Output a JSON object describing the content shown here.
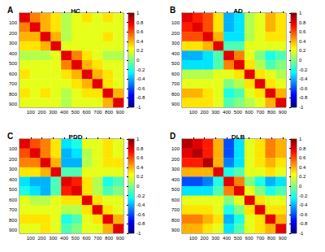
{
  "chart_data": [
    {
      "type": "heatmap",
      "panel": "A",
      "title": "HC",
      "x_edges": [
        0,
        93,
        186,
        279,
        372,
        465,
        558,
        651,
        744,
        837,
        930
      ],
      "y_edges": [
        0,
        93,
        186,
        279,
        372,
        465,
        558,
        651,
        744,
        837,
        930
      ],
      "cells": [
        [
          0.8,
          0.5,
          0.4,
          0.3,
          0.1,
          0.2,
          0.3,
          0.2,
          0.3,
          0.2
        ],
        [
          0.5,
          0.8,
          0.4,
          0.3,
          0.1,
          0.2,
          0.2,
          0.2,
          0.2,
          0.2
        ],
        [
          0.4,
          0.4,
          0.8,
          0.4,
          0.1,
          0.2,
          0.2,
          0.2,
          0.3,
          0.2
        ],
        [
          0.3,
          0.3,
          0.4,
          0.8,
          0.2,
          0.2,
          0.2,
          0.2,
          0.2,
          0.2
        ],
        [
          0.1,
          0.1,
          0.1,
          0.2,
          0.8,
          0.5,
          0.3,
          0.2,
          0.1,
          0.1
        ],
        [
          0.2,
          0.2,
          0.2,
          0.2,
          0.5,
          0.8,
          0.4,
          0.3,
          0.2,
          0.2
        ],
        [
          0.3,
          0.2,
          0.2,
          0.2,
          0.3,
          0.4,
          0.8,
          0.4,
          0.3,
          0.2
        ],
        [
          0.2,
          0.2,
          0.2,
          0.2,
          0.2,
          0.3,
          0.4,
          0.8,
          0.3,
          0.2
        ],
        [
          0.3,
          0.2,
          0.3,
          0.2,
          0.1,
          0.2,
          0.3,
          0.3,
          0.8,
          0.4
        ],
        [
          0.2,
          0.2,
          0.2,
          0.2,
          0.1,
          0.2,
          0.2,
          0.2,
          0.4,
          0.8
        ]
      ],
      "xlim": [
        0,
        930
      ],
      "ylim": [
        0,
        930
      ],
      "xticks": [
        100,
        200,
        300,
        400,
        500,
        600,
        700,
        800,
        900
      ],
      "yticks": [
        100,
        200,
        300,
        400,
        500,
        600,
        700,
        800,
        900
      ],
      "colorbar_range": [
        -1,
        1
      ],
      "colorbar_ticks": [
        -1,
        -0.8,
        -0.6,
        -0.4,
        -0.2,
        0,
        0.2,
        0.4,
        0.6,
        0.8,
        1
      ]
    },
    {
      "type": "heatmap",
      "panel": "B",
      "title": "AD",
      "x_edges": [
        0,
        93,
        186,
        279,
        372,
        465,
        558,
        651,
        744,
        837,
        930
      ],
      "y_edges": [
        0,
        93,
        186,
        279,
        372,
        465,
        558,
        651,
        744,
        837,
        930
      ],
      "cells": [
        [
          0.8,
          0.7,
          0.6,
          0.3,
          -0.4,
          -0.3,
          0.1,
          0.2,
          0.4,
          0.3
        ],
        [
          0.7,
          0.8,
          0.6,
          0.3,
          -0.4,
          -0.3,
          0.1,
          0.2,
          0.4,
          0.3
        ],
        [
          0.6,
          0.6,
          0.8,
          0.4,
          -0.3,
          -0.3,
          0.1,
          0.2,
          0.3,
          0.3
        ],
        [
          0.3,
          0.3,
          0.4,
          0.8,
          -0.1,
          -0.1,
          0.2,
          0.2,
          0.2,
          0.2
        ],
        [
          -0.4,
          -0.4,
          -0.3,
          -0.1,
          0.8,
          0.5,
          0.2,
          0,
          -0.2,
          -0.1
        ],
        [
          -0.3,
          -0.3,
          -0.3,
          -0.1,
          0.5,
          0.8,
          0.3,
          0.1,
          -0.1,
          0
        ],
        [
          0.1,
          0.1,
          0.1,
          0.2,
          0.2,
          0.3,
          0.8,
          0.3,
          0.2,
          0.1
        ],
        [
          0.2,
          0.2,
          0.2,
          0.2,
          0,
          0.1,
          0.3,
          0.8,
          0.3,
          0.2
        ],
        [
          0.4,
          0.4,
          0.3,
          0.2,
          -0.2,
          -0.1,
          0.2,
          0.3,
          0.8,
          0.4
        ],
        [
          0.3,
          0.3,
          0.3,
          0.2,
          -0.1,
          0,
          0.1,
          0.2,
          0.4,
          0.8
        ]
      ],
      "xlim": [
        0,
        930
      ],
      "ylim": [
        0,
        930
      ],
      "xticks": [
        100,
        200,
        300,
        400,
        500,
        600,
        700,
        800,
        900
      ],
      "yticks": [
        100,
        200,
        300,
        400,
        500,
        600,
        700,
        800,
        900
      ],
      "colorbar_range": [
        -1,
        1
      ],
      "colorbar_ticks": [
        -1,
        -0.8,
        -0.6,
        -0.4,
        -0.2,
        0,
        0.2,
        0.4,
        0.6,
        0.8,
        1
      ]
    },
    {
      "type": "heatmap",
      "panel": "C",
      "title": "PDD",
      "x_edges": [
        0,
        93,
        186,
        279,
        372,
        465,
        558,
        651,
        744,
        837,
        930
      ],
      "y_edges": [
        0,
        93,
        186,
        279,
        372,
        465,
        558,
        651,
        744,
        837,
        930
      ],
      "cells": [
        [
          0.8,
          0.6,
          0.5,
          0.3,
          -0.3,
          -0.2,
          0.2,
          0.2,
          0.3,
          0.2
        ],
        [
          0.6,
          0.8,
          0.5,
          0.3,
          -0.4,
          -0.3,
          0.1,
          0.2,
          0.3,
          0.2
        ],
        [
          0.5,
          0.5,
          0.8,
          0.4,
          -0.4,
          -0.4,
          0.1,
          0.2,
          0.3,
          0.3
        ],
        [
          0.3,
          0.3,
          0.4,
          0.8,
          -0.1,
          -0.1,
          0.2,
          0.2,
          0.2,
          0.2
        ],
        [
          -0.3,
          -0.4,
          -0.4,
          -0.1,
          0.8,
          0.7,
          0.3,
          0.1,
          -0.2,
          -0.1
        ],
        [
          -0.2,
          -0.3,
          -0.4,
          -0.1,
          0.7,
          0.8,
          0.3,
          0.1,
          -0.1,
          0
        ],
        [
          0.2,
          0.1,
          0.1,
          0.2,
          0.3,
          0.3,
          0.8,
          0.3,
          0.2,
          0.2
        ],
        [
          0.2,
          0.2,
          0.2,
          0.2,
          0.1,
          0.1,
          0.3,
          0.8,
          0.3,
          0.2
        ],
        [
          0.3,
          0.3,
          0.3,
          0.2,
          -0.2,
          -0.1,
          0.2,
          0.3,
          0.8,
          0.4
        ],
        [
          0.2,
          0.2,
          0.3,
          0.2,
          -0.1,
          0,
          0.2,
          0.2,
          0.4,
          0.8
        ]
      ],
      "xlim": [
        0,
        930
      ],
      "ylim": [
        0,
        930
      ],
      "xticks": [
        100,
        200,
        300,
        400,
        500,
        600,
        700,
        800,
        900
      ],
      "yticks": [
        100,
        200,
        300,
        400,
        500,
        600,
        700,
        800,
        900
      ],
      "colorbar_range": [
        -1,
        1
      ],
      "colorbar_ticks": [
        -1,
        -0.8,
        -0.6,
        -0.4,
        -0.2,
        0,
        0.2,
        0.4,
        0.6,
        0.8,
        1
      ]
    },
    {
      "type": "heatmap",
      "panel": "D",
      "title": "DLB",
      "x_edges": [
        0,
        93,
        186,
        279,
        372,
        465,
        558,
        651,
        744,
        837,
        930
      ],
      "y_edges": [
        0,
        93,
        186,
        279,
        372,
        465,
        558,
        651,
        744,
        837,
        930
      ],
      "cells": [
        [
          0.9,
          0.8,
          0.7,
          0.4,
          -0.6,
          -0.3,
          0.2,
          0.3,
          0.5,
          0.4
        ],
        [
          0.8,
          0.9,
          0.7,
          0.4,
          -0.6,
          -0.3,
          0.2,
          0.3,
          0.5,
          0.4
        ],
        [
          0.7,
          0.7,
          0.9,
          0.4,
          -0.5,
          -0.3,
          0.2,
          0.3,
          0.4,
          0.3
        ],
        [
          0.4,
          0.4,
          0.4,
          0.8,
          -0.2,
          -0.1,
          0.2,
          0.2,
          0.3,
          0.2
        ],
        [
          -0.6,
          -0.6,
          -0.5,
          -0.2,
          0.8,
          0.5,
          0,
          -0.2,
          -0.4,
          -0.3
        ],
        [
          -0.3,
          -0.3,
          -0.3,
          -0.1,
          0.5,
          0.8,
          0.2,
          0,
          -0.2,
          -0.1
        ],
        [
          0.2,
          0.2,
          0.2,
          0.2,
          0,
          0.2,
          0.8,
          0.3,
          0.2,
          0.2
        ],
        [
          0.3,
          0.3,
          0.3,
          0.2,
          -0.2,
          0,
          0.3,
          0.8,
          0.3,
          0.3
        ],
        [
          0.5,
          0.5,
          0.4,
          0.3,
          -0.4,
          -0.2,
          0.2,
          0.3,
          0.8,
          0.4
        ],
        [
          0.4,
          0.4,
          0.3,
          0.2,
          -0.3,
          -0.1,
          0.2,
          0.3,
          0.4,
          0.8
        ]
      ],
      "xlim": [
        0,
        930
      ],
      "ylim": [
        0,
        930
      ],
      "xticks": [
        100,
        200,
        300,
        400,
        500,
        600,
        700,
        800,
        900
      ],
      "yticks": [
        100,
        200,
        300,
        400,
        500,
        600,
        700,
        800,
        900
      ],
      "colorbar_range": [
        -1,
        1
      ],
      "colorbar_ticks": [
        -1,
        -0.8,
        -0.6,
        -0.4,
        -0.2,
        0,
        0.2,
        0.4,
        0.6,
        0.8,
        1
      ]
    }
  ]
}
